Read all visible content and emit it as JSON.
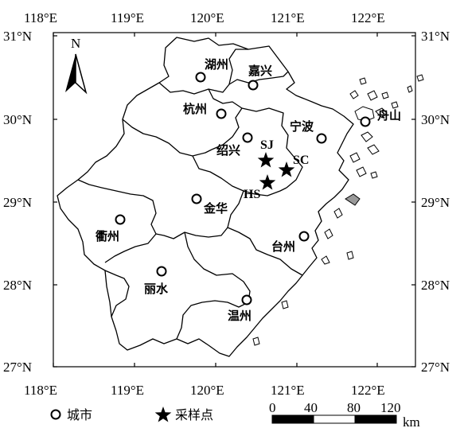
{
  "axes": {
    "top_ticks": [
      "118°E",
      "119°E",
      "120°E",
      "121°E",
      "122°E"
    ],
    "bottom_ticks": [
      "118°E",
      "119°E",
      "120°E",
      "121°E",
      "122°E"
    ],
    "left_ticks": [
      "31°N",
      "30°N",
      "29°N",
      "28°N",
      "27°N"
    ],
    "right_ticks": [
      "31°N",
      "30°N",
      "29°N",
      "28°N",
      "27°N"
    ]
  },
  "north_label": "N",
  "cities": [
    {
      "name": "湖州"
    },
    {
      "name": "嘉兴"
    },
    {
      "name": "杭州"
    },
    {
      "name": "舟山"
    },
    {
      "name": "宁波"
    },
    {
      "name": "绍兴"
    },
    {
      "name": "金华"
    },
    {
      "name": "衢州"
    },
    {
      "name": "台州"
    },
    {
      "name": "丽水"
    },
    {
      "name": "温州"
    }
  ],
  "sites": [
    {
      "name": "SJ"
    },
    {
      "name": "SC"
    },
    {
      "name": "HS"
    }
  ],
  "legend": {
    "city_label": "城市",
    "site_label": "采样点"
  },
  "scale": {
    "ticks": [
      "0",
      "40",
      "80",
      "120"
    ],
    "unit": "km"
  },
  "colors": {
    "outline": "#000000",
    "island_fill": "#999999",
    "background": "#ffffff"
  }
}
